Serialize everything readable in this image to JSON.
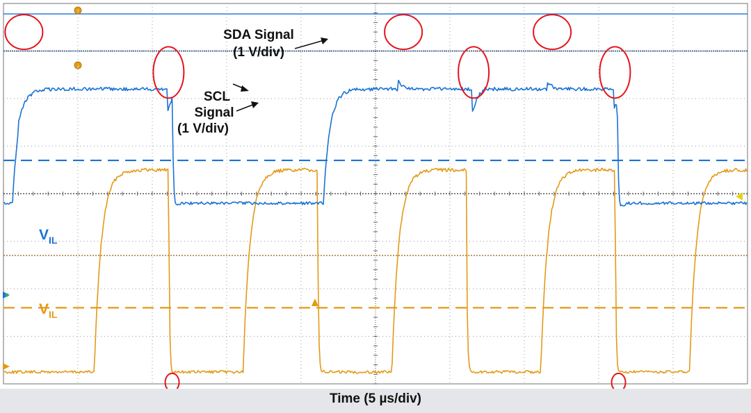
{
  "chart_data": {
    "type": "line",
    "xlabel": "Time (5 µs/div)",
    "colors": {
      "sda": "#1a72d4",
      "scl": "#e29a17",
      "marker": "#e3141d"
    },
    "divisions": {
      "x": 10,
      "y": 8
    },
    "series": [
      {
        "key": "sda",
        "annotation": {
          "line1": "SDA Signal",
          "line2": "(1 V/div)"
        },
        "vil_label": {
          "main": "V",
          "sub": "IL"
        },
        "high_div": 1.8,
        "low_div": 4.2,
        "vil_div": 3.3,
        "transitions_div": [
          [
            0.12,
            "rise"
          ],
          [
            2.27,
            "fall"
          ],
          [
            4.3,
            "rise"
          ],
          [
            8.25,
            "fall"
          ]
        ],
        "glitch_div": [
          0.2,
          2.2,
          5.3,
          6.3,
          7.3,
          8.2
        ]
      },
      {
        "key": "scl",
        "annotation": {
          "line1": "SCL",
          "line2": "Signal",
          "line3": "(1 V/div)"
        },
        "vil_label": {
          "main": "V",
          "sub": "IL"
        },
        "high_div": 3.5,
        "low_div": 7.75,
        "vil_div": 6.4,
        "transitions_div": [
          [
            1.22,
            "rise"
          ],
          [
            2.22,
            "fall"
          ],
          [
            3.22,
            "rise"
          ],
          [
            4.22,
            "fall"
          ],
          [
            5.22,
            "rise"
          ],
          [
            6.22,
            "fall"
          ],
          [
            7.22,
            "rise"
          ],
          [
            8.22,
            "fall"
          ],
          [
            9.22,
            "rise"
          ]
        ],
        "glitch_div": [
          2.22,
          8.22
        ]
      }
    ]
  }
}
